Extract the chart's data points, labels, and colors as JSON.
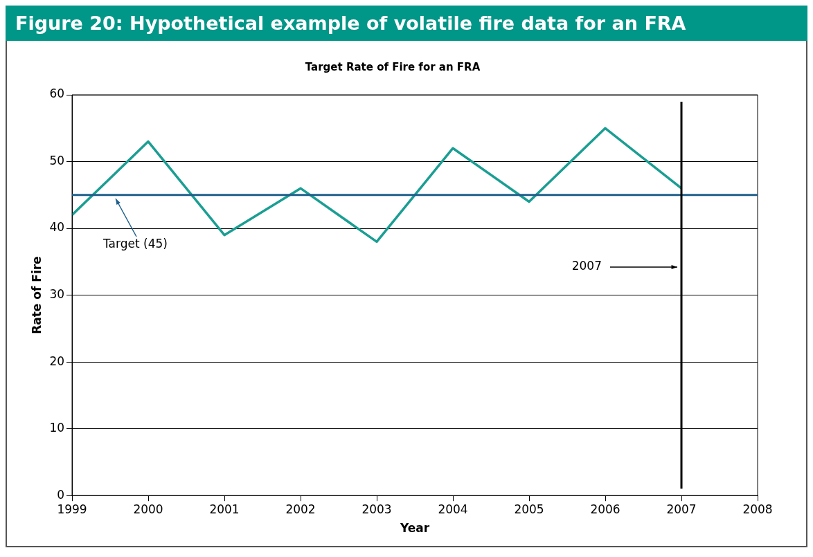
{
  "chart_data": {
    "type": "line",
    "title": "Figure 20: Hypothetical example of volatile fire data for an FRA",
    "subtitle": "Target Rate of Fire for an FRA",
    "xlabel": "Year",
    "ylabel": "Rate of Fire",
    "x": [
      1999,
      2000,
      2001,
      2002,
      2003,
      2004,
      2005,
      2006,
      2007
    ],
    "series": [
      {
        "color": "#1a9e93",
        "values": [
          42,
          53,
          39,
          46,
          38,
          52,
          44,
          55,
          46
        ]
      }
    ],
    "xlim": [
      1999,
      2008
    ],
    "xticks": [
      1999,
      2000,
      2001,
      2002,
      2003,
      2004,
      2005,
      2006,
      2007,
      2008
    ],
    "ylim": [
      0,
      60
    ],
    "yticks": [
      0,
      10,
      20,
      30,
      40,
      50,
      60
    ],
    "ref_lines": [
      {
        "axis": "y",
        "value": 45,
        "label": "Target (45)",
        "color": "#1f5f8b"
      },
      {
        "axis": "x",
        "value": 2007,
        "label": "2007",
        "color": "#000000"
      }
    ],
    "grid": "y",
    "legend": false,
    "marker": "none",
    "line_style": "solid"
  }
}
